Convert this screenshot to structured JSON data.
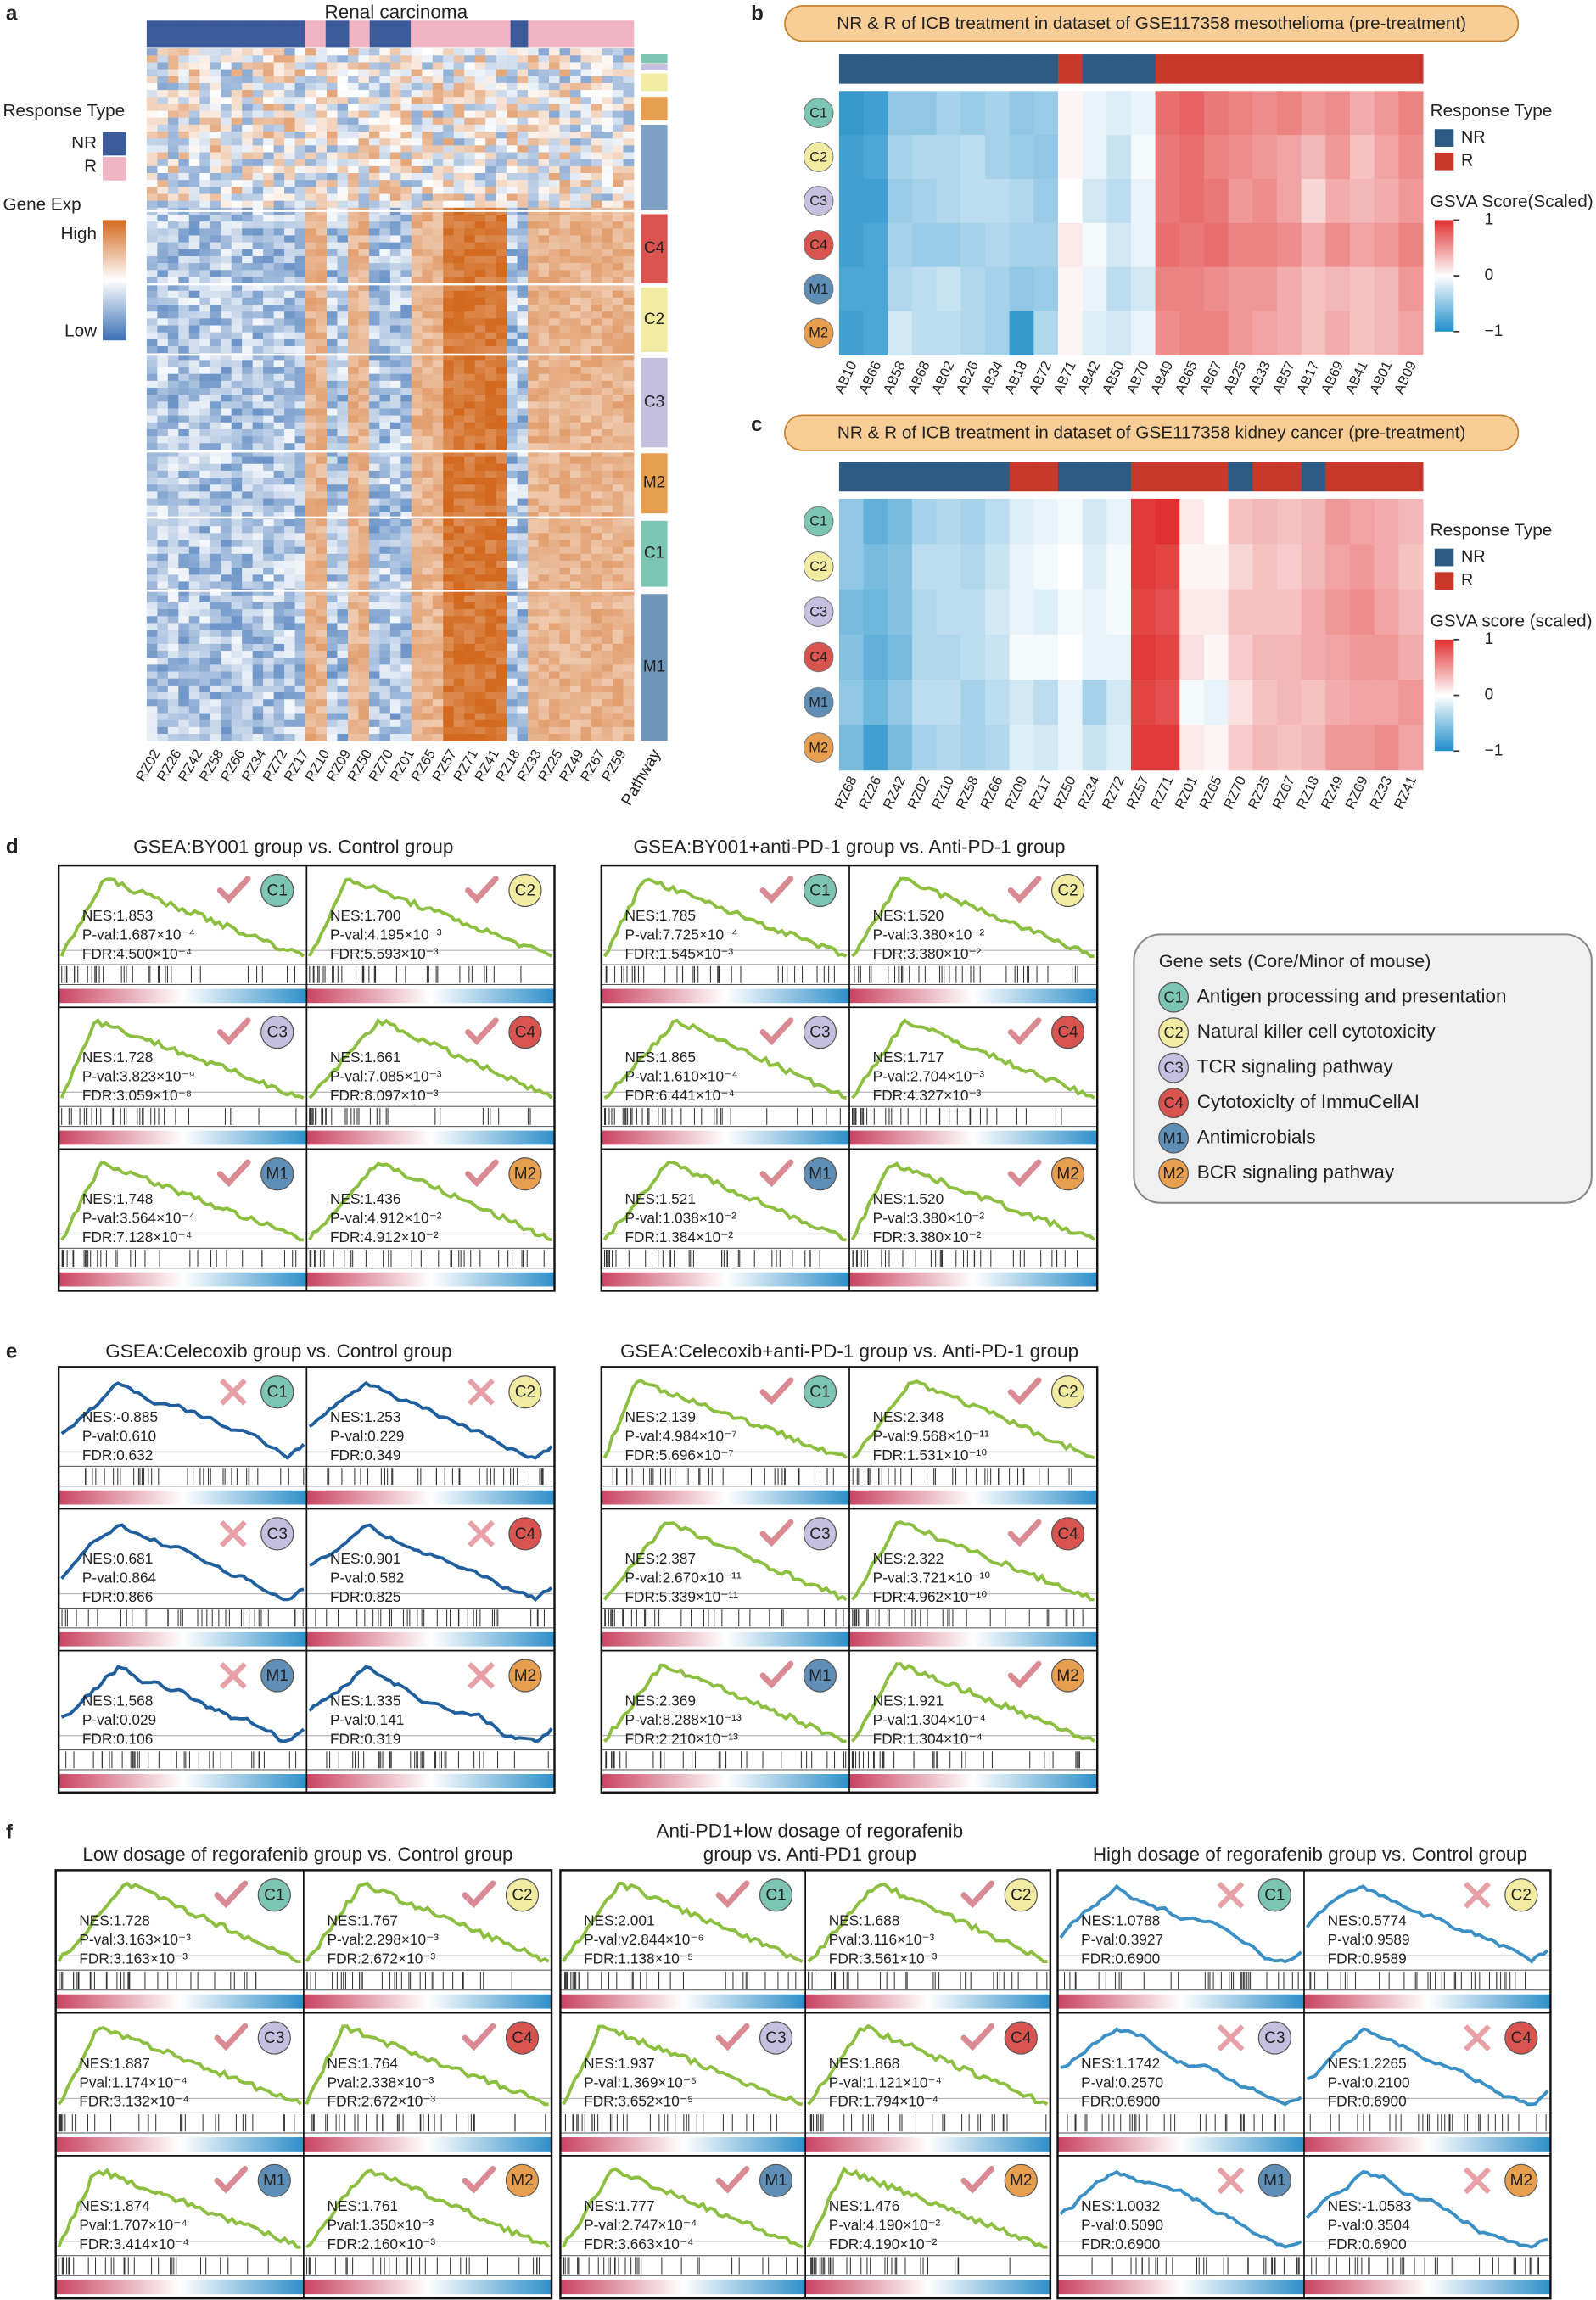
{
  "tag_colors": {
    "C1": "#7cc5b2",
    "C2": "#f2eca2",
    "C3": "#c6c0e0",
    "C4": "#d9534f",
    "M1": "#5f8fb6",
    "M2": "#e89e4f"
  },
  "panels": {
    "a": {
      "label": "a",
      "title": "Renal carcinoma",
      "response_title": "Response Type",
      "nr": "NR",
      "r": "R",
      "expr_title": "Gene Exp",
      "high": "High",
      "low": "Low",
      "samples": [
        "RZ02",
        "RZ26",
        "RZ42",
        "RZ58",
        "RZ66",
        "RZ34",
        "RZ72",
        "RZ17",
        "RZ10",
        "RZ09",
        "RZ50",
        "RZ70",
        "RZ01",
        "RZ65",
        "RZ57",
        "RZ71",
        "RZ41",
        "RZ18",
        "RZ33",
        "RZ25",
        "RZ49",
        "RZ67",
        "RZ59"
      ],
      "pathway_title": "Pathway",
      "pathway_tags": [
        "C4",
        "C2",
        "C3",
        "M2",
        "C1",
        "M1"
      ]
    },
    "b": {
      "label": "b",
      "title": "NR & R of ICB treatment in dataset of GSE117358 mesothelioma (pre-treatment)",
      "rows": [
        "C1",
        "C2",
        "C3",
        "C4",
        "M1",
        "M2"
      ],
      "samples": [
        "AB10",
        "AB66",
        "AB58",
        "AB68",
        "AB02",
        "AB26",
        "AB34",
        "AB18",
        "AB72",
        "AB71",
        "AB42",
        "AB50",
        "AB70",
        "AB49",
        "AB65",
        "AB67",
        "AB25",
        "AB33",
        "AB57",
        "AB17",
        "AB69",
        "AB41",
        "AB01",
        "AB09"
      ],
      "response": [
        "NR",
        "NR",
        "NR",
        "NR",
        "NR",
        "NR",
        "NR",
        "NR",
        "NR",
        "R",
        "NR",
        "NR",
        "NR",
        "R",
        "R",
        "R",
        "R",
        "R",
        "R",
        "R",
        "R",
        "R",
        "R",
        "R"
      ],
      "values": [
        [
          -0.9,
          -0.85,
          -0.5,
          -0.5,
          -0.4,
          -0.45,
          -0.4,
          -0.5,
          -0.45,
          0.05,
          -0.1,
          -0.15,
          -0.1,
          0.7,
          0.75,
          0.65,
          0.6,
          0.55,
          0.6,
          0.5,
          0.55,
          0.4,
          0.5,
          0.6
        ],
        [
          -0.85,
          -0.8,
          -0.4,
          -0.35,
          -0.35,
          -0.3,
          -0.4,
          -0.45,
          -0.5,
          0.05,
          -0.1,
          -0.25,
          -0.05,
          0.65,
          0.7,
          0.6,
          0.55,
          0.5,
          0.45,
          0.35,
          0.5,
          0.3,
          0.45,
          0.55
        ],
        [
          -0.85,
          -0.85,
          -0.45,
          -0.4,
          -0.35,
          -0.3,
          -0.3,
          -0.35,
          -0.45,
          0.0,
          -0.2,
          -0.3,
          -0.1,
          0.65,
          0.7,
          0.65,
          0.5,
          0.55,
          0.45,
          0.2,
          0.4,
          0.35,
          0.4,
          0.5
        ],
        [
          -0.85,
          -0.8,
          -0.4,
          -0.45,
          -0.45,
          -0.4,
          -0.35,
          -0.4,
          -0.4,
          0.1,
          -0.05,
          -0.2,
          -0.1,
          0.7,
          0.65,
          0.7,
          0.6,
          0.6,
          0.55,
          0.4,
          0.55,
          0.45,
          0.5,
          0.6
        ],
        [
          -0.8,
          -0.8,
          -0.35,
          -0.3,
          -0.25,
          -0.35,
          -0.4,
          -0.5,
          -0.45,
          0.05,
          -0.1,
          -0.3,
          -0.2,
          0.6,
          0.6,
          0.55,
          0.5,
          0.5,
          0.4,
          0.3,
          0.35,
          0.3,
          0.35,
          0.5
        ],
        [
          -0.85,
          -0.8,
          -0.2,
          -0.3,
          -0.3,
          -0.35,
          -0.4,
          -0.9,
          -0.35,
          0.05,
          -0.15,
          -0.2,
          -0.1,
          0.55,
          0.6,
          0.6,
          0.5,
          0.45,
          0.4,
          0.3,
          0.4,
          0.3,
          0.35,
          0.45
        ]
      ],
      "response_title": "Response Type",
      "nr": "NR",
      "r": "R",
      "nr_color": "#2e5b84",
      "r_color": "#c8392b",
      "colorbar_title": "GSVA Score(Scaled)",
      "clim": [
        -1,
        1
      ],
      "cticks": [
        1,
        0,
        {
          "value": -1,
          "label": "−1"
        }
      ]
    },
    "c": {
      "label": "c",
      "title": "NR & R of ICB treatment in dataset of GSE117358 kidney cancer (pre-treatment)",
      "rows": [
        "C1",
        "C2",
        "C3",
        "C4",
        "M1",
        "M2"
      ],
      "samples": [
        "RZ68",
        "RZ26",
        "RZ42",
        "RZ02",
        "RZ10",
        "RZ58",
        "RZ66",
        "RZ09",
        "RZ17",
        "RZ50",
        "RZ34",
        "RZ72",
        "RZ57",
        "RZ71",
        "RZ01",
        "RZ65",
        "RZ70",
        "RZ25",
        "RZ67",
        "RZ18",
        "RZ49",
        "RZ69",
        "RZ33",
        "RZ41"
      ],
      "response": [
        "NR",
        "NR",
        "NR",
        "NR",
        "NR",
        "NR",
        "NR",
        "R",
        "R",
        "NR",
        "NR",
        "NR",
        "R",
        "R",
        "R",
        "R",
        "NR",
        "R",
        "R",
        "NR",
        "R",
        "R",
        "R",
        "R"
      ],
      "values": [
        [
          -0.5,
          -0.7,
          -0.6,
          -0.4,
          -0.35,
          -0.4,
          -0.3,
          -0.15,
          -0.1,
          -0.05,
          -0.2,
          -0.1,
          0.95,
          1.0,
          0.1,
          0.0,
          0.3,
          0.35,
          0.3,
          0.35,
          0.5,
          0.45,
          0.4,
          0.35
        ],
        [
          -0.5,
          -0.6,
          -0.55,
          -0.3,
          -0.3,
          -0.35,
          -0.25,
          -0.1,
          -0.05,
          0.0,
          -0.15,
          -0.05,
          0.95,
          0.9,
          0.05,
          0.05,
          0.2,
          0.3,
          0.25,
          0.35,
          0.45,
          0.5,
          0.4,
          0.3
        ],
        [
          -0.6,
          -0.65,
          -0.55,
          -0.35,
          -0.3,
          -0.3,
          -0.2,
          -0.1,
          -0.15,
          -0.05,
          -0.1,
          -0.05,
          0.9,
          0.85,
          0.1,
          0.1,
          0.3,
          0.3,
          0.3,
          0.4,
          0.5,
          0.55,
          0.45,
          0.35
        ],
        [
          -0.55,
          -0.7,
          -0.6,
          -0.35,
          -0.35,
          -0.3,
          -0.25,
          -0.05,
          -0.05,
          0.0,
          -0.1,
          -0.1,
          0.95,
          0.9,
          0.15,
          0.05,
          0.25,
          0.35,
          0.35,
          0.4,
          0.45,
          0.5,
          0.5,
          0.4
        ],
        [
          -0.5,
          -0.65,
          -0.5,
          -0.3,
          -0.3,
          -0.4,
          -0.3,
          -0.2,
          -0.3,
          -0.1,
          -0.4,
          -0.2,
          0.9,
          0.85,
          -0.05,
          -0.1,
          0.15,
          0.3,
          0.35,
          0.3,
          0.4,
          0.45,
          0.45,
          0.5
        ],
        [
          -0.6,
          -0.85,
          -0.6,
          -0.4,
          -0.35,
          -0.4,
          -0.35,
          -0.15,
          -0.2,
          -0.1,
          -0.25,
          -0.15,
          0.95,
          0.95,
          0.1,
          0.05,
          0.25,
          0.35,
          0.3,
          0.35,
          0.5,
          0.5,
          0.55,
          0.45
        ]
      ],
      "response_title": "Response Type",
      "nr": "NR",
      "r": "R",
      "nr_color": "#2e5b84",
      "r_color": "#c8392b",
      "colorbar_title": "GSVA score (scaled)",
      "clim": [
        -1,
        1
      ],
      "cticks": [
        1,
        0,
        {
          "value": -1,
          "label": "−1"
        }
      ]
    },
    "d": {
      "label": "d",
      "groups": [
        {
          "title": [
            "GSEA:BY001 group vs. Control group"
          ],
          "significant": true,
          "curve_color": "#8cbf3f",
          "text_color": "#a33a44",
          "cells": [
            {
              "tag": "C1",
              "nes": "NES:1.853",
              "pval": "P-val:1.687×10⁻⁴",
              "fdr": "FDR:4.500×10⁻⁴"
            },
            {
              "tag": "C2",
              "nes": "NES:1.700",
              "pval": "P-val:4.195×10⁻³",
              "fdr": "FDR:5.593×10⁻³"
            },
            {
              "tag": "C3",
              "nes": "NES:1.728",
              "pval": "P-val:3.823×10⁻⁹",
              "fdr": "FDR:3.059×10⁻⁸"
            },
            {
              "tag": "C4",
              "nes": "NES:1.661",
              "pval": "P-val:7.085×10⁻³",
              "fdr": "FDR:8.097×10⁻³"
            },
            {
              "tag": "M1",
              "nes": "NES:1.748",
              "pval": "P-val:3.564×10⁻⁴",
              "fdr": "FDR:7.128×10⁻⁴"
            },
            {
              "tag": "M2",
              "nes": "NES:1.436",
              "pval": "P-val:4.912×10⁻²",
              "fdr": "FDR:4.912×10⁻²"
            }
          ]
        },
        {
          "title": [
            "GSEA:BY001+anti-PD-1 group vs. Anti-PD-1 group"
          ],
          "significant": true,
          "curve_color": "#8cbf3f",
          "text_color": "#a33a44",
          "cells": [
            {
              "tag": "C1",
              "nes": "NES:1.785",
              "pval": "P-val:7.725×10⁻⁴",
              "fdr": "FDR:1.545×10⁻³"
            },
            {
              "tag": "C2",
              "nes": "NES:1.520",
              "pval": "P-val:3.380×10⁻²",
              "fdr": "FDR:3.380×10⁻²"
            },
            {
              "tag": "C3",
              "nes": "NES:1.865",
              "pval": "P-val:1.610×10⁻⁴",
              "fdr": "FDR:6.441×10⁻⁴"
            },
            {
              "tag": "C4",
              "nes": "NES:1.717",
              "pval": "P-val:2.704×10⁻³",
              "fdr": "FDR:4.327×10⁻³"
            },
            {
              "tag": "M1",
              "nes": "NES:1.521",
              "pval": "P-val:1.038×10⁻²",
              "fdr": "FDR:1.384×10⁻²"
            },
            {
              "tag": "M2",
              "nes": "NES:1.520",
              "pval": "P-val:3.380×10⁻²",
              "fdr": "FDR:3.380×10⁻²"
            }
          ]
        }
      ]
    },
    "e": {
      "label": "e",
      "groups": [
        {
          "title": [
            "GSEA:Celecoxib group vs. Control group"
          ],
          "significant": false,
          "curve_color": "#1f5f9e",
          "text_color": "#2a5f9e",
          "cells": [
            {
              "tag": "C1",
              "nes": "NES:-0.885",
              "pval": "P-val:0.610",
              "fdr": "FDR:0.632"
            },
            {
              "tag": "C2",
              "nes": "NES:1.253",
              "pval": "P-val:0.229",
              "fdr": "FDR:0.349"
            },
            {
              "tag": "C3",
              "nes": "NES:0.681",
              "pval": "P-val:0.864",
              "fdr": "FDR:0.866"
            },
            {
              "tag": "C4",
              "nes": "NES:0.901",
              "pval": "P-val:0.582",
              "fdr": "FDR:0.825"
            },
            {
              "tag": "M1",
              "nes": "NES:1.568",
              "pval": "P-val:0.029",
              "fdr": "FDR:0.106"
            },
            {
              "tag": "M2",
              "nes": "NES:1.335",
              "pval": "P-val:0.141",
              "fdr": "FDR:0.319"
            }
          ]
        },
        {
          "title": [
            "GSEA:Celecoxib+anti-PD-1 group vs. Anti-PD-1 group"
          ],
          "significant": true,
          "curve_color": "#8cbf3f",
          "text_color": "#a33a44",
          "cells": [
            {
              "tag": "C1",
              "nes": "NES:2.139",
              "pval": "P-val:4.984×10⁻⁷",
              "fdr": "FDR:5.696×10⁻⁷"
            },
            {
              "tag": "C2",
              "nes": "NES:2.348",
              "pval": "P-val:9.568×10⁻¹¹",
              "fdr": "FDR:1.531×10⁻¹⁰"
            },
            {
              "tag": "C3",
              "nes": "NES:2.387",
              "pval": "P-val:2.670×10⁻¹¹",
              "fdr": "FDR:5.339×10⁻¹¹"
            },
            {
              "tag": "C4",
              "nes": "NES:2.322",
              "pval": "P-val:3.721×10⁻¹⁰",
              "fdr": "FDR:4.962×10⁻¹⁰"
            },
            {
              "tag": "M1",
              "nes": "NES:2.369",
              "pval": "P-val:8.288×10⁻¹³",
              "fdr": "FDR:2.210×10⁻¹³"
            },
            {
              "tag": "M2",
              "nes": "NES:1.921",
              "pval": "P-val:1.304×10⁻⁴",
              "fdr": "FDR:1.304×10⁻⁴"
            }
          ]
        }
      ]
    },
    "f": {
      "label": "f",
      "groups": [
        {
          "title": [
            "Low dosage of regorafenib group vs. Control group"
          ],
          "significant": true,
          "curve_color": "#8cbf3f",
          "text_color": "#a33a44",
          "cells": [
            {
              "tag": "C1",
              "nes": "NES:1.728",
              "pval": "P-val:3.163×10⁻³",
              "fdr": "FDR:3.163×10⁻³"
            },
            {
              "tag": "C2",
              "nes": "NES:1.767",
              "pval": "P-val:2.298×10⁻³",
              "fdr": "FDR:2.672×10⁻³"
            },
            {
              "tag": "C3",
              "nes": "NES:1.887",
              "pval": "Pval:1.174×10⁻⁴",
              "fdr": "FDR:3.132×10⁻⁴"
            },
            {
              "tag": "C4",
              "nes": "NES:1.764",
              "pval": "Pval:2.338×10⁻³",
              "fdr": "FDR:2.672×10⁻³"
            },
            {
              "tag": "M1",
              "nes": "NES:1.874",
              "pval": "Pval:1.707×10⁻⁴",
              "fdr": "FDR:3.414×10⁻⁴"
            },
            {
              "tag": "M2",
              "nes": "NES:1.761",
              "pval": "Pval:1.350×10⁻³",
              "fdr": "FDR:2.160×10⁻³"
            }
          ]
        },
        {
          "title": [
            "Anti-PD1+low dosage of regorafenib",
            "group vs. Anti-PD1 group"
          ],
          "significant": true,
          "curve_color": "#8cbf3f",
          "text_color": "#a33a44",
          "cells": [
            {
              "tag": "C1",
              "nes": "NES:2.001",
              "pval": "P-val:v2.844×10⁻⁶",
              "fdr": "FDR:1.138×10⁻⁵"
            },
            {
              "tag": "C2",
              "nes": "NES:1.688",
              "pval": "Pval:3.116×10⁻³",
              "fdr": "FDR:3.561×10⁻³"
            },
            {
              "tag": "C3",
              "nes": "NES:1.937",
              "pval": "P-val:1.369×10⁻⁵",
              "fdr": "FDR:3.652×10⁻⁵"
            },
            {
              "tag": "C4",
              "nes": "NES:1.868",
              "pval": "P-val:1.121×10⁻⁴",
              "fdr": "FDR:1.794×10⁻⁴"
            },
            {
              "tag": "M1",
              "nes": "NES:1.777",
              "pval": "P-val:2.747×10⁻⁴",
              "fdr": "FDR:3.663×10⁻⁴"
            },
            {
              "tag": "M2",
              "nes": "NES:1.476",
              "pval": "P-val:4.190×10⁻²",
              "fdr": "FDR:4.190×10⁻²"
            }
          ]
        },
        {
          "title": [
            "High dosage of regorafenib group vs. Control group"
          ],
          "significant": false,
          "curve_color": "#3a8fc4",
          "text_color": "#2a6fa8",
          "cells": [
            {
              "tag": "C1",
              "nes": "NES:1.0788",
              "pval": "P-val:0.3927",
              "fdr": "FDR:0.6900"
            },
            {
              "tag": "C2",
              "nes": "NES:0.5774",
              "pval": "P-val:0.9589",
              "fdr": "FDR:0.9589"
            },
            {
              "tag": "C3",
              "nes": "NES:1.1742",
              "pval": "P-val:0.2570",
              "fdr": "FDR:0.6900"
            },
            {
              "tag": "C4",
              "nes": "NES:1.2265",
              "pval": "P-val:0.2100",
              "fdr": "FDR:0.6900"
            },
            {
              "tag": "M1",
              "nes": "NES:1.0032",
              "pval": "P-val:0.5090",
              "fdr": "FDR:0.6900"
            },
            {
              "tag": "M2",
              "nes": "NES:-1.0583",
              "pval": "P-val:0.3504",
              "fdr": "FDR:0.6900"
            }
          ]
        }
      ]
    }
  },
  "legend": {
    "title": "Gene  sets (Core/Minor of mouse)",
    "items": [
      {
        "tag": "C1",
        "text": "Antigen processing and presentation"
      },
      {
        "tag": "C2",
        "text": "Natural killer cell cytotoxicity"
      },
      {
        "tag": "C3",
        "text": "TCR signaling pathway"
      },
      {
        "tag": "C4",
        "text": "Cytotoxiclty of ImmuCellAI"
      },
      {
        "tag": "M1",
        "text": "Antimicrobials"
      },
      {
        "tag": "M2",
        "text": "BCR signaling pathway"
      }
    ]
  }
}
